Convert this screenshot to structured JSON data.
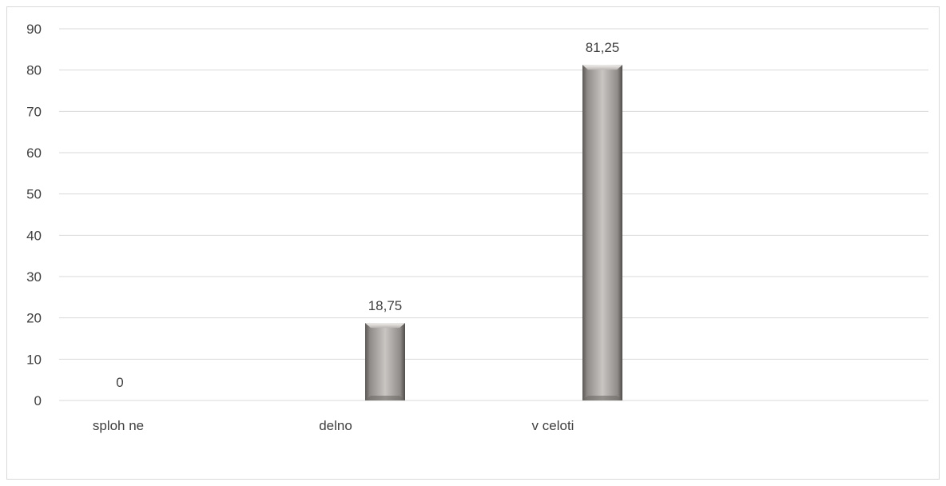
{
  "chart_data": {
    "type": "bar",
    "categories": [
      "sploh ne",
      "delno",
      "v celoti"
    ],
    "values": [
      0,
      18.75,
      81.25
    ],
    "data_labels": [
      "0",
      "18,75",
      "81,25"
    ],
    "ylim": [
      0,
      90
    ],
    "yticks": [
      "0",
      "10",
      "20",
      "30",
      "40",
      "50",
      "60",
      "70",
      "80",
      "90"
    ],
    "grid": true,
    "bar_color": "#a8a4a1"
  }
}
